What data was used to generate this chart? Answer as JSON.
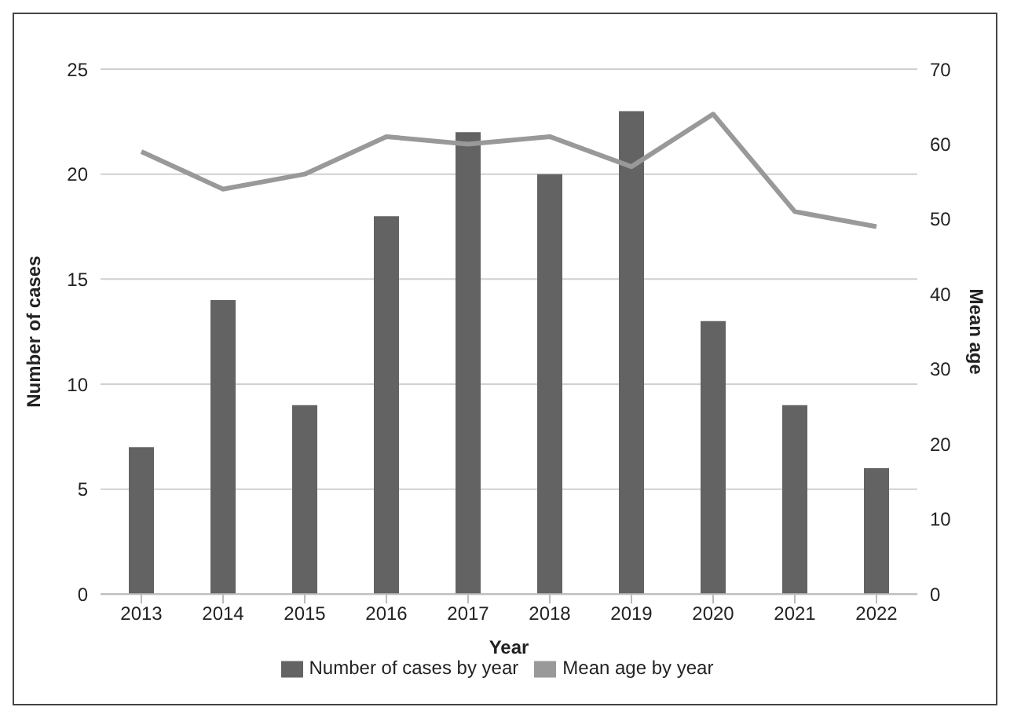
{
  "chart_data": {
    "type": "bar",
    "xlabel": "Year",
    "ylabel": "Number of cases",
    "y2label": "Mean age",
    "categories": [
      "2013",
      "2014",
      "2015",
      "2016",
      "2017",
      "2018",
      "2019",
      "2020",
      "2021",
      "2022"
    ],
    "series": [
      {
        "name": "Number of cases by year",
        "color": "#636363",
        "values": [
          7,
          14,
          9,
          18,
          22,
          20,
          23,
          13,
          9,
          6
        ]
      },
      {
        "name": "Mean age by year",
        "type": "line",
        "axis": "y2",
        "color": "#999999",
        "values": [
          59,
          54,
          56,
          61,
          60,
          61,
          57,
          64,
          51,
          49
        ]
      }
    ],
    "ylim": [
      0,
      25
    ],
    "yticks": [
      0,
      5,
      10,
      15,
      20,
      25
    ],
    "y2lim": [
      0,
      70
    ],
    "y2ticks": [
      0,
      10,
      20,
      30,
      40,
      50,
      60,
      70
    ],
    "grid": "y",
    "legend": "bottom",
    "marker": "none",
    "line_style": "solid"
  }
}
